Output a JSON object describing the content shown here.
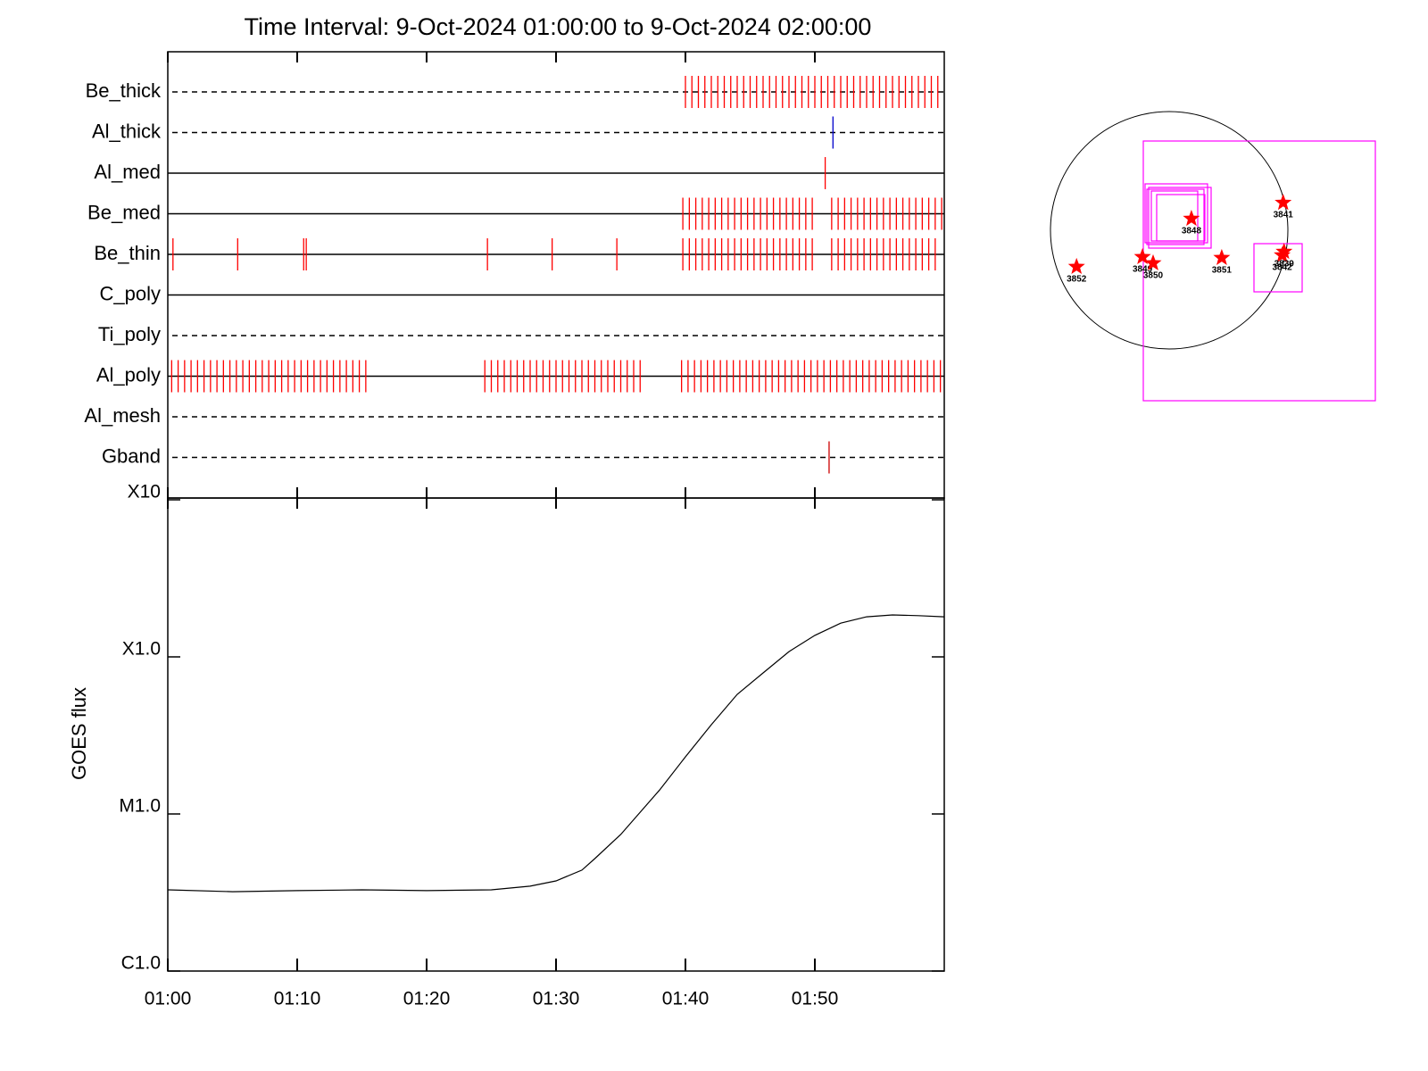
{
  "chart_data": [
    {
      "type": "event",
      "title": "Time Interval:  9-Oct-2024 01:00:00 to  9-Oct-2024 02:00:00",
      "xlim": [
        0,
        60
      ],
      "rows": [
        {
          "name": "Be_thick",
          "line_style": "dashed",
          "color": "#ff0000",
          "events": [
            40,
            40.5,
            41,
            41.5,
            42,
            42.5,
            43,
            43.5,
            44,
            44.5,
            45,
            45.5,
            46,
            46.5,
            47,
            47.5,
            48,
            48.5,
            49,
            49.5,
            50,
            50.5,
            51,
            51.5,
            52,
            52.5,
            53,
            53.5,
            54,
            54.5,
            55,
            55.5,
            56,
            56.5,
            57,
            57.5,
            58,
            58.5,
            59,
            59.5
          ]
        },
        {
          "name": "Al_thick",
          "line_style": "dashed",
          "color": "#0000cc",
          "events": [
            51.4
          ]
        },
        {
          "name": "Al_med",
          "line_style": "solid",
          "color": "#ff0000",
          "events": [
            50.8
          ]
        },
        {
          "name": "Be_med",
          "line_style": "solid",
          "color": "#ff0000",
          "events": [
            39.8,
            40.3,
            40.8,
            41.3,
            41.8,
            42.3,
            42.8,
            43.3,
            43.8,
            44.3,
            44.8,
            45.3,
            45.8,
            46.3,
            46.8,
            47.3,
            47.8,
            48.3,
            48.8,
            49.3,
            49.8,
            51.3,
            51.8,
            52.3,
            52.8,
            53.3,
            53.8,
            54.3,
            54.8,
            55.3,
            55.8,
            56.3,
            56.8,
            57.3,
            57.8,
            58.3,
            58.8,
            59.3,
            59.8
          ]
        },
        {
          "name": "Be_thin",
          "line_style": "solid",
          "color": "#ff0000",
          "events": [
            0.4,
            5.4,
            10.5,
            10.7,
            24.7,
            29.7,
            34.7,
            39.8,
            40.3,
            40.8,
            41.3,
            41.8,
            42.3,
            42.8,
            43.3,
            43.8,
            44.3,
            44.8,
            45.3,
            45.8,
            46.3,
            46.8,
            47.3,
            47.8,
            48.3,
            48.8,
            49.3,
            49.8,
            51.3,
            51.8,
            52.3,
            52.8,
            53.3,
            53.8,
            54.3,
            54.8,
            55.3,
            55.8,
            56.3,
            56.8,
            57.3,
            57.8,
            58.3,
            58.8,
            59.3
          ]
        },
        {
          "name": "C_poly",
          "line_style": "solid",
          "color": "#ff0000",
          "events": []
        },
        {
          "name": "Ti_poly",
          "line_style": "dashed",
          "color": "#ff0000",
          "events": []
        },
        {
          "name": "Al_poly",
          "line_style": "solid",
          "color": "#ff0000",
          "events": [
            0.3,
            0.8,
            1.3,
            1.8,
            2.3,
            2.8,
            3.3,
            3.8,
            4.3,
            4.8,
            5.3,
            5.8,
            6.3,
            6.8,
            7.3,
            7.8,
            8.3,
            8.8,
            9.3,
            9.8,
            10.3,
            10.8,
            11.3,
            11.8,
            12.3,
            12.8,
            13.3,
            13.8,
            14.3,
            14.8,
            15.3,
            24.5,
            25,
            25.5,
            26,
            26.5,
            27,
            27.5,
            28,
            28.5,
            29,
            29.5,
            30,
            30.5,
            31,
            31.5,
            32,
            32.5,
            33,
            33.5,
            34,
            34.5,
            35,
            35.5,
            36,
            36.5,
            39.7,
            40.2,
            40.7,
            41.2,
            41.7,
            42.2,
            42.7,
            43.2,
            43.7,
            44.2,
            44.7,
            45.2,
            45.7,
            46.2,
            46.7,
            47.2,
            47.7,
            48.2,
            48.7,
            49.2,
            49.7,
            50.2,
            50.7,
            51.2,
            51.7,
            52.2,
            52.7,
            53.2,
            53.7,
            54.2,
            54.7,
            55.2,
            55.7,
            56.2,
            56.7,
            57.2,
            57.7,
            58.2,
            58.7,
            59.2,
            59.7
          ]
        },
        {
          "name": "Al_mesh",
          "line_style": "dashed",
          "color": "#ff0000",
          "events": []
        },
        {
          "name": "Gband",
          "line_style": "dashed",
          "color": "#cc0000",
          "events": [
            51.1
          ]
        }
      ]
    },
    {
      "type": "line",
      "y_label": "GOES flux",
      "log_y": true,
      "color": "#000000",
      "xlim": [
        0,
        60
      ],
      "xticks": [
        {
          "value": 0,
          "label": "01:00"
        },
        {
          "value": 10,
          "label": "01:10"
        },
        {
          "value": 20,
          "label": "01:20"
        },
        {
          "value": 30,
          "label": "01:30"
        },
        {
          "value": 40,
          "label": "01:40"
        },
        {
          "value": 50,
          "label": "01:50"
        }
      ],
      "ylim": [
        1e-06,
        0.001
      ],
      "yticks": [
        {
          "value": 1e-06,
          "label": "C1.0"
        },
        {
          "value": 1e-05,
          "label": "M1.0"
        },
        {
          "value": 0.0001,
          "label": "X1.0"
        },
        {
          "value": 0.001,
          "label": "X10"
        }
      ],
      "x": [
        0,
        5,
        10,
        15,
        20,
        25,
        28,
        30,
        32,
        33,
        35,
        38,
        40,
        42,
        44,
        46,
        48,
        50,
        52,
        54,
        56,
        58,
        60
      ],
      "values": [
        3.29e-06,
        3.2e-06,
        3.25e-06,
        3.29e-06,
        3.25e-06,
        3.29e-06,
        3.47e-06,
        3.75e-06,
        4.39e-06,
        5.2e-06,
        7.4e-06,
        1.42e-05,
        2.31e-05,
        3.7e-05,
        5.77e-05,
        7.9e-05,
        0.000108,
        0.000137,
        0.000164,
        0.00018,
        0.000185,
        0.000183,
        0.00018
      ]
    },
    {
      "type": "scatter",
      "color": "#ff0000",
      "labels": [
        "3841",
        "3848",
        "3849",
        "3850",
        "3851",
        "3852",
        "3842",
        "3839"
      ],
      "x": [
        922,
        180,
        -216,
        -130,
        425,
        -749,
        914,
        929
      ],
      "y": [
        223,
        94,
        -216,
        -266,
        -223,
        -295,
        -202,
        -173
      ]
    }
  ]
}
